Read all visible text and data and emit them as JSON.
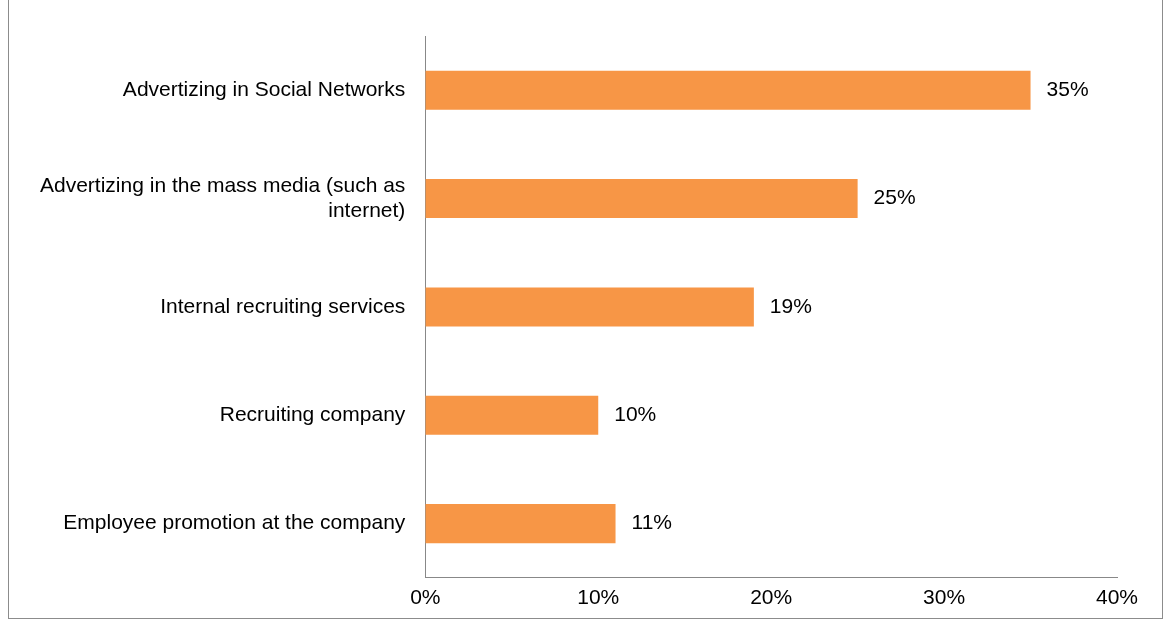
{
  "chart_data": {
    "type": "bar",
    "orientation": "horizontal",
    "categories": [
      "Advertizing in Social Networks",
      "Advertizing in the mass media (such as internet)",
      "Internal recruiting services",
      "Recruiting company",
      "Employee promotion at the company"
    ],
    "values": [
      35,
      25,
      19,
      10,
      11
    ],
    "color": "#f79646",
    "xlim": [
      0,
      40
    ],
    "xticks": [
      {
        "value": 0,
        "label": "0%"
      },
      {
        "value": 10,
        "label": "10%"
      },
      {
        "value": 20,
        "label": "20%"
      },
      {
        "value": 30,
        "label": "30%"
      },
      {
        "value": 40,
        "label": "40%"
      }
    ],
    "value_labels": [
      "35%",
      "25%",
      "19%",
      "10%",
      "11%"
    ],
    "grid": false,
    "legend": false
  }
}
